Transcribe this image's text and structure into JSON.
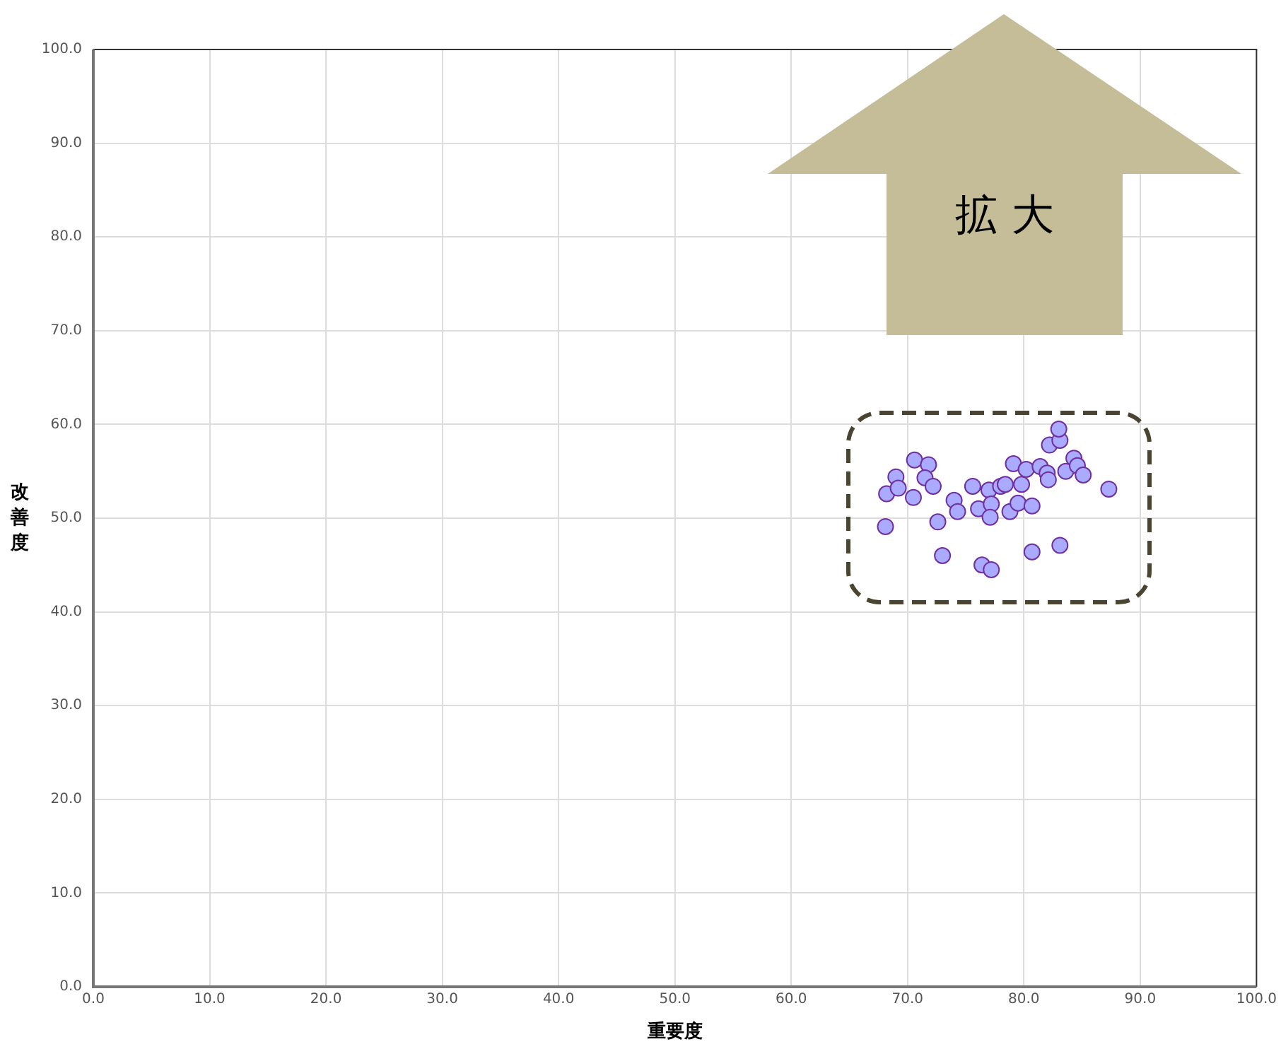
{
  "chart_data": {
    "type": "scatter",
    "xlabel": "重要度",
    "ylabel": "改善度",
    "annotations": [
      "拡 大"
    ],
    "xlim": [
      0,
      100
    ],
    "ylim": [
      0,
      100
    ],
    "xticks": [
      {
        "value": 0,
        "label": "0.0"
      },
      {
        "value": 10,
        "label": "10.0"
      },
      {
        "value": 20,
        "label": "20.0"
      },
      {
        "value": 30,
        "label": "30.0"
      },
      {
        "value": 40,
        "label": "40.0"
      },
      {
        "value": 50,
        "label": "50.0"
      },
      {
        "value": 60,
        "label": "60.0"
      },
      {
        "value": 70,
        "label": "70.0"
      },
      {
        "value": 80,
        "label": "80.0"
      },
      {
        "value": 90,
        "label": "90.0"
      },
      {
        "value": 100,
        "label": "100.0"
      }
    ],
    "yticks": [
      {
        "value": 0,
        "label": "0.0"
      },
      {
        "value": 10,
        "label": "10.0"
      },
      {
        "value": 20,
        "label": "20.0"
      },
      {
        "value": 30,
        "label": "30.0"
      },
      {
        "value": 40,
        "label": "40.0"
      },
      {
        "value": 50,
        "label": "50.0"
      },
      {
        "value": 60,
        "label": "60.0"
      },
      {
        "value": 70,
        "label": "70.0"
      },
      {
        "value": 80,
        "label": "80.0"
      },
      {
        "value": 90,
        "label": "90.0"
      },
      {
        "value": 100,
        "label": "100.0"
      }
    ],
    "grid": true,
    "legend": false,
    "marker": "circle",
    "series": [
      {
        "color": "#aaaaff",
        "x": [
          68.1,
          68.2,
          69.0,
          69.2,
          70.6,
          70.5,
          71.8,
          71.5,
          72.2,
          72.6,
          73.0,
          74.0,
          74.3,
          75.6,
          76.1,
          77.0,
          77.2,
          77.1,
          76.4,
          77.2,
          78.0,
          78.4,
          78.8,
          79.5,
          79.1,
          79.8,
          80.2,
          80.7,
          80.7,
          81.4,
          82.0,
          82.1,
          82.2,
          83.1,
          83.0,
          83.1,
          83.6,
          84.3,
          84.6,
          85.1,
          87.3
        ],
        "values": [
          49.1,
          52.6,
          54.4,
          53.2,
          56.2,
          52.2,
          55.7,
          54.3,
          53.4,
          49.6,
          46.0,
          51.9,
          50.7,
          53.4,
          51.0,
          53.0,
          51.5,
          50.1,
          45.0,
          44.5,
          53.4,
          53.6,
          50.7,
          51.6,
          55.8,
          53.6,
          55.2,
          51.3,
          46.4,
          55.5,
          54.8,
          54.1,
          57.8,
          58.3,
          59.5,
          47.1,
          55.0,
          56.4,
          55.6,
          54.6,
          53.1
        ]
      }
    ]
  }
}
